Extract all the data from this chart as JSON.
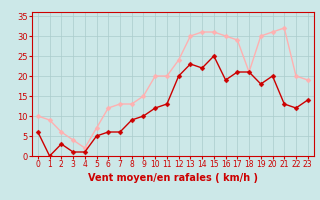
{
  "x": [
    0,
    1,
    2,
    3,
    4,
    5,
    6,
    7,
    8,
    9,
    10,
    11,
    12,
    13,
    14,
    15,
    16,
    17,
    18,
    19,
    20,
    21,
    22,
    23
  ],
  "vent_moyen": [
    6,
    0,
    3,
    1,
    1,
    5,
    6,
    6,
    9,
    10,
    12,
    13,
    20,
    23,
    22,
    25,
    19,
    21,
    21,
    18,
    20,
    13,
    12,
    14
  ],
  "rafales": [
    10,
    9,
    6,
    4,
    2,
    7,
    12,
    13,
    13,
    15,
    20,
    20,
    24,
    30,
    31,
    31,
    30,
    29,
    21,
    30,
    31,
    32,
    20,
    19
  ],
  "xlabel": "Vent moyen/en rafales ( km/h )",
  "ylim": [
    0,
    36
  ],
  "xlim_left": -0.5,
  "xlim_right": 23.5,
  "yticks": [
    0,
    5,
    10,
    15,
    20,
    25,
    30,
    35
  ],
  "xticks": [
    0,
    1,
    2,
    3,
    4,
    5,
    6,
    7,
    8,
    9,
    10,
    11,
    12,
    13,
    14,
    15,
    16,
    17,
    18,
    19,
    20,
    21,
    22,
    23
  ],
  "color_moyen": "#cc0000",
  "color_rafales": "#ffb0b0",
  "bg_color": "#cce8e8",
  "grid_color": "#aacccc",
  "spine_color": "#cc0000",
  "marker_size": 2.5,
  "linewidth": 1.0,
  "xlabel_fontsize": 7,
  "ytick_fontsize": 6,
  "xtick_fontsize": 5.5
}
